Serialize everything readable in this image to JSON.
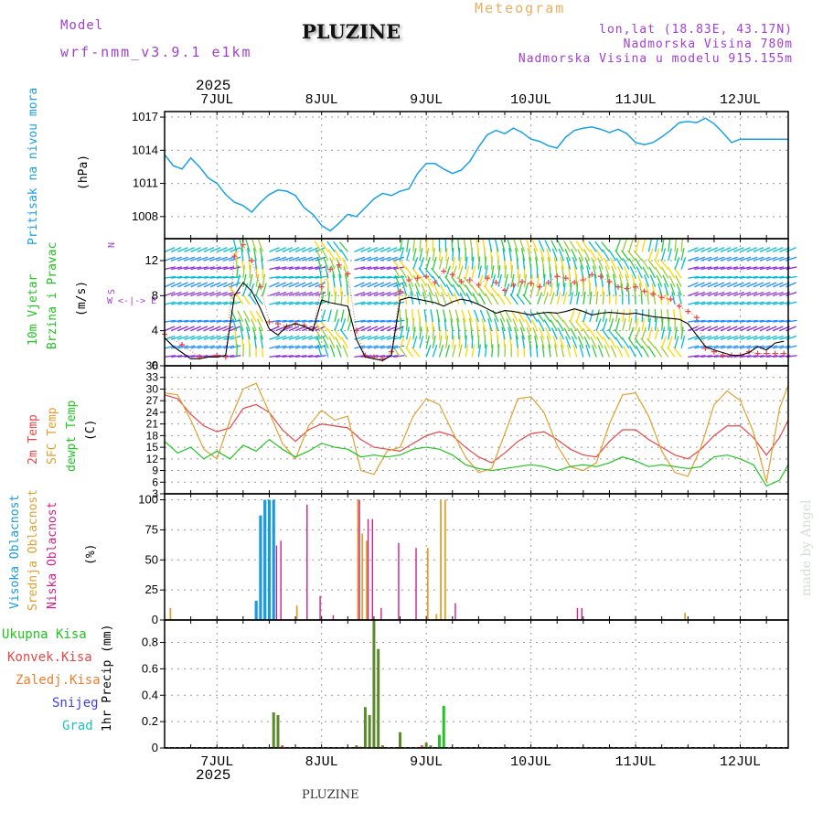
{
  "header": {
    "model_label": "Model",
    "model_value": "wrf-nmm_v3.9.1  e1km",
    "title": "PLUZINE",
    "subtitle": "Meteogram",
    "coords": "lon,lat (18.83E, 43.17N)",
    "elevation": "Nadmorska Visina 780m",
    "model_elevation": "Nadmorska Visina u modelu 915.155m",
    "year_top": "2025",
    "year_bottom": "2025",
    "footer": "PLUZINE",
    "credit": "made by Angel"
  },
  "colors": {
    "pressure": "#1aa0e6",
    "wind_black": "#000000",
    "gust": "#e84646",
    "t2m": "#e84646",
    "sfc": "#e0a030",
    "dew": "#22c322",
    "high_cloud": "#1a9be0",
    "mid_cloud": "#e0a030",
    "low_cloud": "#d0208a",
    "total_precip": "#5a8a2a",
    "conv_precip": "#e84646",
    "frozen": "#f08030",
    "snow": "#4040e0",
    "hail": "#20c0c0",
    "header_purple": "#a040d0",
    "header_orange": "#e8b060"
  },
  "chart_data": [
    {
      "type": "line",
      "panel": "pressure",
      "ylabel_name": "Pritisak na nivou mora",
      "ylabel_unit": "(hPa)",
      "xlim": [
        0,
        143
      ],
      "ylim": [
        1006,
        1017.5
      ],
      "yticks": [
        1008,
        1011,
        1014,
        1017
      ],
      "x_ticks_hours": [
        12,
        36,
        60,
        84,
        108,
        132
      ],
      "x_tick_labels": [
        "7JUL",
        "8JUL",
        "9JUL",
        "10JUL",
        "11JUL",
        "12JUL"
      ],
      "series": [
        {
          "values_hours": [
            0,
            2,
            4,
            6,
            8,
            10,
            12,
            14,
            16,
            18,
            20,
            22,
            24,
            26,
            28,
            30,
            32,
            34,
            36,
            38,
            40,
            42,
            44,
            46,
            48,
            50,
            52,
            54,
            56,
            58,
            60,
            62,
            64,
            66,
            68,
            70,
            72,
            74,
            76,
            78,
            80,
            82,
            84,
            86,
            88,
            90,
            92,
            94,
            96,
            98,
            100,
            102,
            104,
            106,
            108,
            110,
            112,
            114,
            116,
            118,
            120,
            122,
            124,
            126,
            128,
            130,
            132,
            134,
            136,
            138,
            140,
            142,
            143
          ],
          "values": [
            1013.6,
            1012.6,
            1012.3,
            1013.3,
            1012.5,
            1011.5,
            1011.0,
            1010.0,
            1009.3,
            1009.0,
            1008.4,
            1009.3,
            1010.0,
            1010.4,
            1010.3,
            1009.9,
            1008.8,
            1008.2,
            1007.2,
            1006.7,
            1007.4,
            1008.2,
            1008.0,
            1008.8,
            1009.6,
            1010.1,
            1009.9,
            1010.3,
            1010.5,
            1011.9,
            1012.8,
            1012.8,
            1012.3,
            1011.9,
            1012.2,
            1013.0,
            1014.3,
            1015.4,
            1015.8,
            1015.5,
            1016.0,
            1015.6,
            1015.0,
            1014.8,
            1014.4,
            1014.2,
            1015.2,
            1015.8,
            1016.0,
            1016.1,
            1015.9,
            1015.6,
            1015.9,
            1015.5,
            1014.7,
            1014.5,
            1014.7,
            1015.2,
            1015.8,
            1016.5,
            1016.6,
            1016.5,
            1016.9,
            1016.4,
            1015.6,
            1014.7,
            1015.0,
            1015.0,
            1015.0,
            1015.0,
            1015.0,
            1015.0,
            1015.0
          ]
        }
      ]
    },
    {
      "type": "line",
      "panel": "wind",
      "ylabel_name": "10m Vjetar",
      "ylabel_name2": "Brzina i Pravac",
      "ylabel_unit": "(m/s)",
      "compass_n": "N",
      "compass_row": "W <-|-> E",
      "compass_s": "S",
      "ylim": [
        0,
        14.5
      ],
      "yticks": [
        0,
        4,
        8,
        12
      ],
      "series": [
        {
          "name": "speed",
          "values_hours": [
            0,
            2,
            4,
            6,
            8,
            10,
            12,
            14,
            16,
            18,
            20,
            22,
            24,
            26,
            28,
            30,
            32,
            34,
            36,
            38,
            40,
            42,
            44,
            46,
            48,
            50,
            52,
            54,
            56,
            58,
            60,
            62,
            64,
            66,
            68,
            70,
            72,
            74,
            76,
            78,
            80,
            82,
            84,
            86,
            88,
            90,
            92,
            94,
            96,
            98,
            100,
            102,
            104,
            106,
            108,
            110,
            112,
            114,
            116,
            118,
            120,
            122,
            124,
            126,
            128,
            130,
            132,
            134,
            136,
            138,
            140,
            142
          ],
          "values": [
            3.2,
            2.2,
            1.5,
            0.8,
            0.8,
            1.0,
            1.0,
            1.2,
            8.0,
            9.5,
            8.5,
            6.5,
            4.2,
            3.5,
            4.5,
            4.8,
            4.5,
            4.0,
            7.5,
            7.2,
            7.0,
            6.8,
            3.0,
            1.0,
            0.8,
            0.6,
            1.2,
            7.5,
            7.8,
            7.6,
            7.4,
            7.2,
            6.8,
            7.3,
            7.6,
            7.4,
            7.0,
            6.5,
            6.0,
            6.3,
            6.2,
            6.0,
            5.8,
            6.0,
            6.1,
            6.0,
            6.2,
            6.5,
            6.2,
            5.8,
            6.0,
            6.1,
            6.0,
            5.9,
            6.0,
            5.8,
            5.6,
            5.5,
            5.4,
            5.3,
            4.8,
            3.5,
            2.2,
            1.8,
            1.5,
            1.2,
            1.2,
            1.5,
            2.2,
            1.8,
            2.6,
            2.8
          ]
        },
        {
          "name": "gusts",
          "values_hours": [
            0,
            4,
            8,
            12,
            14,
            16,
            18,
            20,
            22,
            24,
            26,
            28,
            30,
            32,
            34,
            36,
            38,
            40,
            42,
            44,
            46,
            48,
            50,
            52,
            54,
            56,
            58,
            60,
            62,
            64,
            66,
            68,
            70,
            72,
            74,
            76,
            78,
            80,
            82,
            84,
            86,
            88,
            90,
            92,
            94,
            96,
            98,
            100,
            102,
            104,
            106,
            108,
            110,
            112,
            114,
            116,
            118,
            120,
            122,
            124,
            126,
            128,
            130,
            132,
            134,
            136,
            138,
            140,
            142
          ],
          "values": [
            3.6,
            2.4,
            1.0,
            1.2,
            1.0,
            12.5,
            13.8,
            12.0,
            9.0,
            5.0,
            4.8,
            4.5,
            4.8,
            4.6,
            4.2,
            9.0,
            11.0,
            11.5,
            10.5,
            4.0,
            1.2,
            1.0,
            0.8,
            1.6,
            8.5,
            9.8,
            10.0,
            10.2,
            9.5,
            10.8,
            10.4,
            9.6,
            9.8,
            9.2,
            10.0,
            9.5,
            8.6,
            9.2,
            9.6,
            9.4,
            9.0,
            9.5,
            10.2,
            10.0,
            9.5,
            9.8,
            10.4,
            10.2,
            9.6,
            9.0,
            8.8,
            9.0,
            8.5,
            8.2,
            7.8,
            7.6,
            6.8,
            6.2,
            5.5,
            2.0,
            1.6,
            1.2,
            1.2,
            1.2,
            1.6,
            1.4,
            1.4,
            1.4,
            1.4
          ]
        }
      ]
    },
    {
      "type": "line",
      "panel": "temperature",
      "ylabel_name": "2m Temp",
      "ylabel_name2": "SFC Temp",
      "ylabel_name3": "dewpt Temp",
      "ylabel_unit": "(C)",
      "ylim": [
        3,
        36
      ],
      "yticks": [
        3,
        6,
        9,
        12,
        15,
        18,
        21,
        24,
        27,
        30,
        33,
        36
      ],
      "x_hours": [
        0,
        3,
        6,
        9,
        12,
        15,
        18,
        21,
        24,
        27,
        30,
        33,
        36,
        39,
        42,
        45,
        48,
        51,
        54,
        57,
        60,
        63,
        66,
        69,
        72,
        75,
        78,
        81,
        84,
        87,
        90,
        93,
        96,
        99,
        102,
        105,
        108,
        111,
        114,
        117,
        120,
        123,
        126,
        129,
        132,
        135,
        138,
        141,
        143
      ],
      "series": [
        {
          "name": "2m Temp",
          "values": [
            28.5,
            27.5,
            23.5,
            20.5,
            19.0,
            20.0,
            25.0,
            26.0,
            24.0,
            19.5,
            16.5,
            19.5,
            21.0,
            20.5,
            20.0,
            17.0,
            15.0,
            14.5,
            14.0,
            16.0,
            18.0,
            19.0,
            18.0,
            15.0,
            12.5,
            11.0,
            13.5,
            16.5,
            18.5,
            19.0,
            17.0,
            14.5,
            13.0,
            12.5,
            16.5,
            19.5,
            19.5,
            17.0,
            15.0,
            13.0,
            12.0,
            14.5,
            18.0,
            20.5,
            20.5,
            17.5,
            13.0,
            17.5,
            22.0
          ]
        },
        {
          "name": "SFC Temp",
          "values": [
            29.0,
            28.5,
            22.0,
            14.5,
            12.0,
            22.0,
            30.0,
            31.5,
            24.0,
            16.0,
            12.0,
            20.5,
            24.5,
            22.0,
            23.0,
            9.0,
            8.0,
            14.0,
            15.0,
            23.0,
            27.5,
            26.0,
            19.0,
            12.5,
            8.5,
            9.5,
            18.5,
            27.5,
            28.0,
            24.0,
            15.5,
            10.0,
            9.0,
            11.0,
            21.0,
            28.5,
            29.0,
            23.0,
            14.0,
            8.5,
            7.5,
            15.0,
            26.0,
            29.5,
            27.0,
            19.0,
            6.0,
            25.0,
            31.0
          ]
        },
        {
          "name": "dewpt Temp",
          "values": [
            16.5,
            13.5,
            15.0,
            12.0,
            14.0,
            12.0,
            15.5,
            14.0,
            17.0,
            14.5,
            12.5,
            14.0,
            16.0,
            15.0,
            14.5,
            12.5,
            13.0,
            12.5,
            13.0,
            14.5,
            15.0,
            14.5,
            13.0,
            10.5,
            9.5,
            9.0,
            9.5,
            10.0,
            10.5,
            10.0,
            9.0,
            10.0,
            10.5,
            10.0,
            11.0,
            12.5,
            11.5,
            10.0,
            10.5,
            10.0,
            9.5,
            10.0,
            12.5,
            13.0,
            12.0,
            10.5,
            5.0,
            6.5,
            10.5
          ]
        }
      ]
    },
    {
      "type": "bar",
      "panel": "clouds",
      "ylabel_name": "Visoka Oblacnost",
      "ylabel_name2": "Srednja Oblacnost",
      "ylabel_name3": "Niska Oblacnost",
      "ylabel_unit": "(%)",
      "ylim": [
        0,
        105
      ],
      "yticks": [
        0,
        25,
        50,
        75,
        100
      ],
      "series": [
        {
          "name": "Visoka Oblacnost",
          "hours": [
            21,
            22,
            23,
            24,
            25
          ],
          "values": [
            16,
            87,
            100,
            100,
            100
          ]
        },
        {
          "name": "Srednja Oblacnost",
          "hours": [
            1,
            30,
            44,
            45,
            46,
            60,
            62,
            63,
            64,
            119
          ],
          "values": [
            10,
            12,
            100,
            72,
            66,
            60,
            5,
            100,
            100,
            6
          ]
        },
        {
          "name": "Niska Oblacnost",
          "hours": [
            26,
            27,
            33,
            36,
            39,
            45,
            47,
            48,
            50,
            54,
            58,
            67,
            95,
            96
          ],
          "values": [
            62,
            66,
            96,
            20,
            4,
            100,
            84,
            84,
            10,
            64,
            60,
            14,
            10,
            10
          ]
        }
      ]
    },
    {
      "type": "bar",
      "panel": "precip",
      "ylabel_name": "1hr Precip (mm)",
      "ylim": [
        0,
        0.97
      ],
      "yticks": [
        0,
        0.2,
        0.4,
        0.6,
        0.8
      ],
      "legend": [
        "Ukupna  Kisa",
        "Konvek.Kisa",
        "Zaledj.Kisa",
        "Snijeg",
        "Grad"
      ],
      "series": [
        {
          "name": "Ukupna Kisa",
          "hours": [
            25,
            26,
            44,
            46,
            47,
            48,
            49,
            50,
            54,
            60,
            61,
            63,
            64
          ],
          "values": [
            0.27,
            0.25,
            0.02,
            0.31,
            0.25,
            0.97,
            0.75,
            0.02,
            0.12,
            0.04,
            0.02,
            0.1,
            0.32
          ]
        },
        {
          "name": "Konvek.Kisa",
          "hours": [
            27,
            45,
            59
          ],
          "values": [
            0.02,
            0.01,
            0.02
          ]
        }
      ]
    }
  ]
}
